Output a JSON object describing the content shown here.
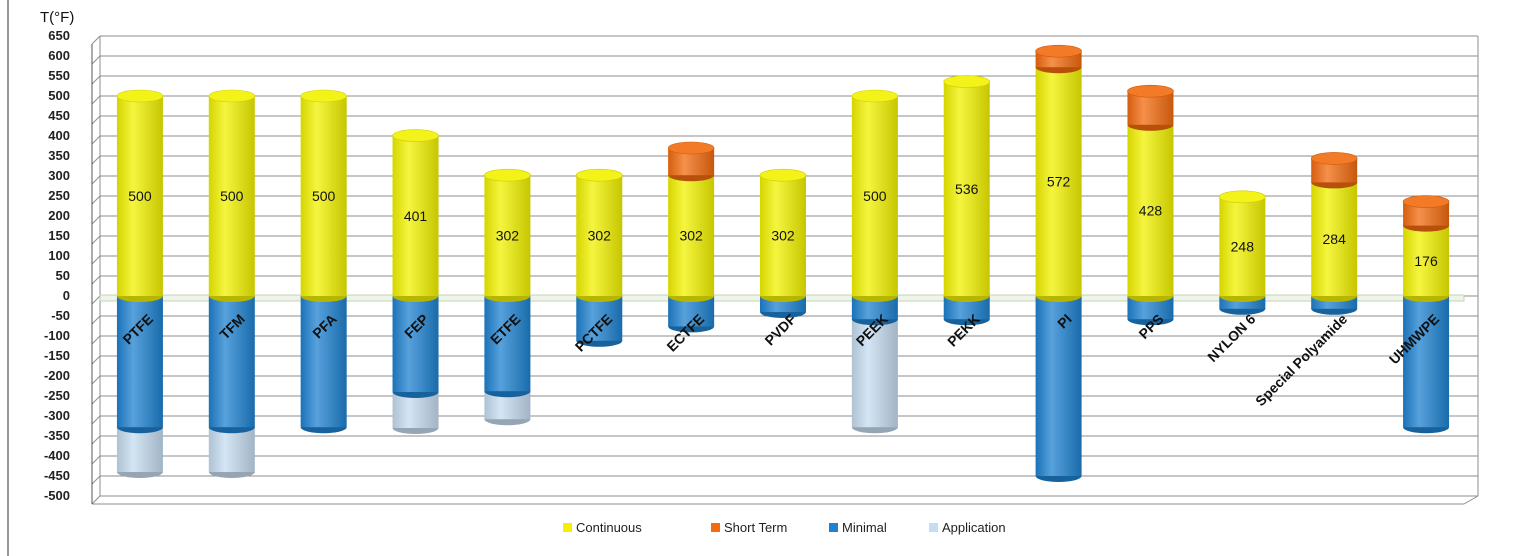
{
  "chart_data": {
    "type": "bar",
    "stacked": true,
    "ylabel": "T(°F)",
    "ylim": [
      -500,
      650
    ],
    "yticks": [
      -500,
      -450,
      -400,
      -350,
      -300,
      -250,
      -200,
      -150,
      -100,
      -50,
      0,
      50,
      100,
      150,
      200,
      250,
      300,
      350,
      400,
      450,
      500,
      550,
      600,
      650
    ],
    "grid": true,
    "legend_position": "bottom",
    "categories": [
      "PTFE",
      "TFM",
      "PFA",
      "FEP",
      "ETFE",
      "PCTFE",
      "ECTFE",
      "PVDF",
      "PEEK",
      "PEKK",
      "PI",
      "PPS",
      "NYLON 6",
      "Special Polyamide",
      "UHMWPE"
    ],
    "series": [
      {
        "name": "Continuous",
        "color": "#F2F200",
        "values": [
          500,
          500,
          500,
          401,
          302,
          302,
          302,
          302,
          500,
          536,
          572,
          428,
          248,
          284,
          176
        ]
      },
      {
        "name": "Short Term",
        "color": "#F26B0F",
        "values": [
          0,
          0,
          0,
          0,
          0,
          0,
          68,
          0,
          0,
          0,
          40,
          84,
          0,
          60,
          60
        ]
      },
      {
        "name": "Minimal",
        "color": "#1F82D0",
        "values": [
          -328,
          -328,
          -328,
          -240,
          -238,
          -112,
          -76,
          -40,
          -58,
          -58,
          -450,
          -58,
          -32,
          -32,
          -328
        ]
      },
      {
        "name": "Application",
        "color": "#C6DCF0",
        "values": [
          -112,
          -112,
          0,
          -90,
          -70,
          0,
          0,
          0,
          -270,
          0,
          0,
          0,
          0,
          0,
          0
        ]
      }
    ],
    "data_labels": [
      "500",
      "500",
      "500",
      "401",
      "302",
      "302",
      "302",
      "302",
      "500",
      "536",
      "572",
      "428",
      "248",
      "284",
      "176"
    ]
  }
}
